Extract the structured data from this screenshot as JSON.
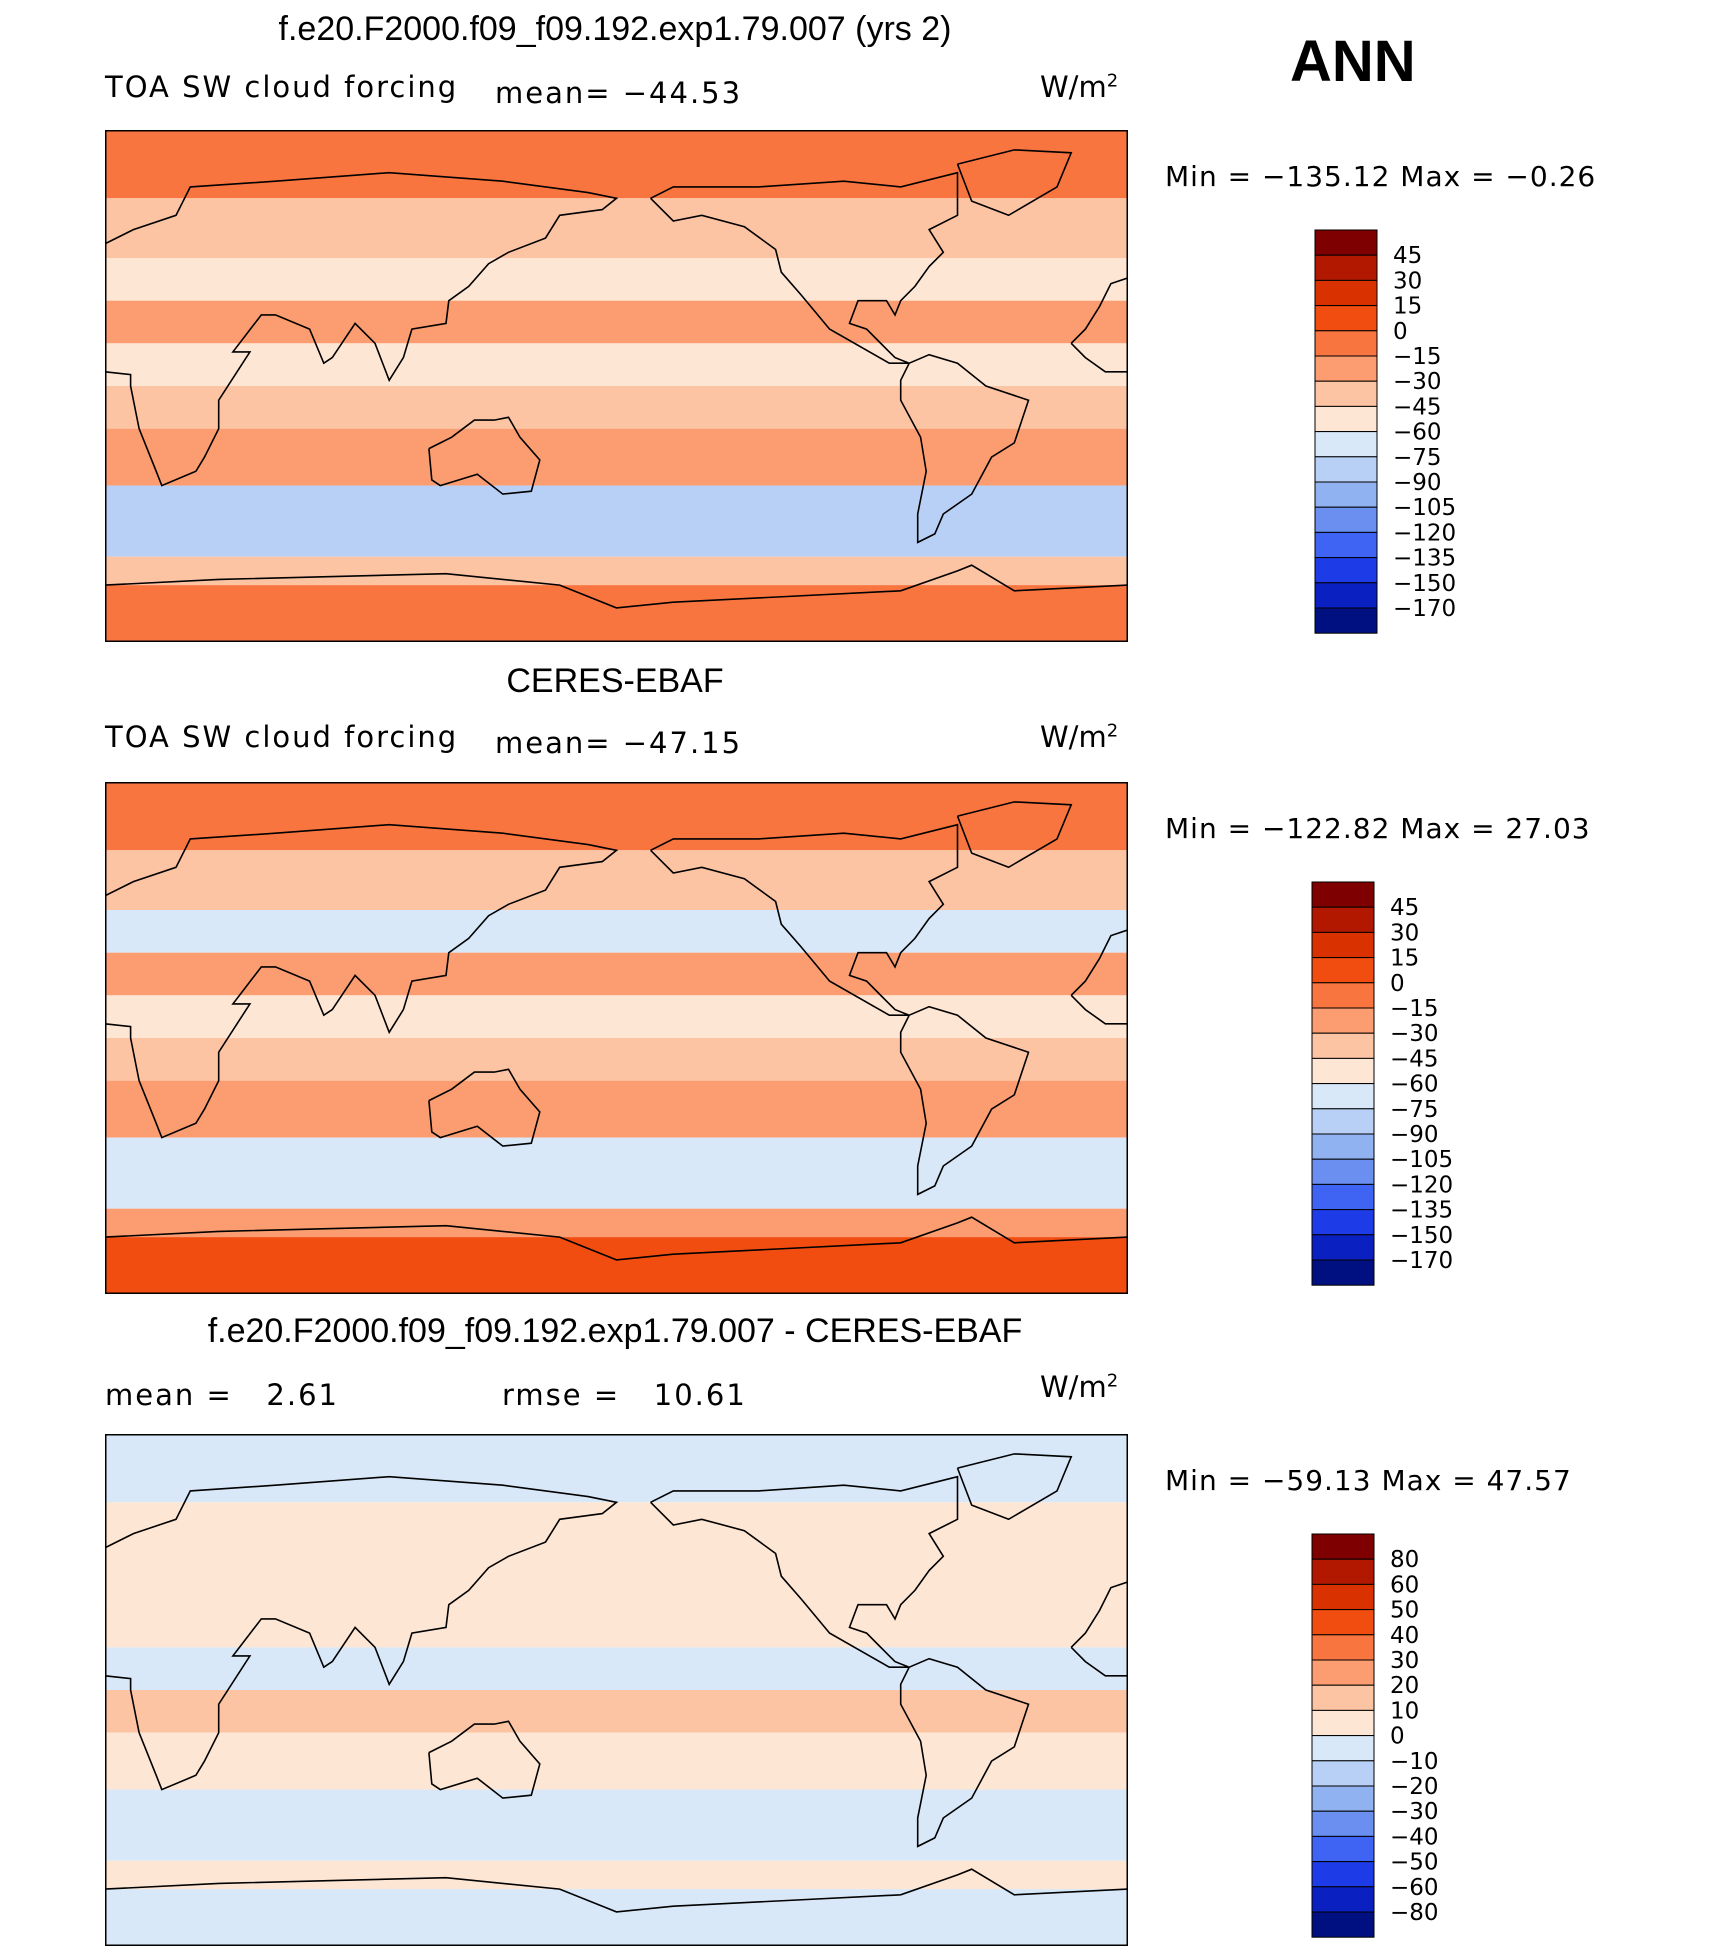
{
  "season": "ANN",
  "chart_data": [
    {
      "type": "heatmap",
      "title": "f.e20.F2000.f09_f09.192.exp1.79.007 (yrs 2)",
      "variable": "TOA SW cloud forcing",
      "mean_label": "mean= −44.53",
      "units": "W/m",
      "units_exp": "2",
      "min_max": "Min = −135.12 Max = −0.26",
      "min": -135.12,
      "max": -0.26,
      "mean": -44.53,
      "levels": [
        "45",
        "30",
        "15",
        "0",
        "−15",
        "−30",
        "−45",
        "−60",
        "−75",
        "−90",
        "−105",
        "−120",
        "−135",
        "−150",
        "−170"
      ],
      "colors": [
        "#7f0000",
        "#b21800",
        "#d93200",
        "#f24d10",
        "#f97540",
        "#fb9d70",
        "#fdc4a4",
        "#fee6d4",
        "#d8e8f8",
        "#b8d0f5",
        "#91b2f0",
        "#6a8ff0",
        "#3f63f2",
        "#1e3be8",
        "#0b20c0",
        "#001080"
      ],
      "bands": [
        {
          "lat": [
            90,
            66
          ],
          "value": -15
        },
        {
          "lat": [
            66,
            45
          ],
          "value": -45
        },
        {
          "lat": [
            45,
            30
          ],
          "value": -60
        },
        {
          "lat": [
            30,
            15
          ],
          "value": -30
        },
        {
          "lat": [
            15,
            0
          ],
          "value": -60
        },
        {
          "lat": [
            0,
            -15
          ],
          "value": -45
        },
        {
          "lat": [
            -15,
            -35
          ],
          "value": -30
        },
        {
          "lat": [
            -35,
            -60
          ],
          "value": -90
        },
        {
          "lat": [
            -60,
            -70
          ],
          "value": -45
        },
        {
          "lat": [
            -70,
            -90
          ],
          "value": -15
        }
      ]
    },
    {
      "type": "heatmap",
      "title": "CERES-EBAF",
      "variable": "TOA SW cloud forcing",
      "mean_label": "mean= −47.15",
      "units": "W/m",
      "units_exp": "2",
      "min_max": "Min = −122.82 Max = 27.03",
      "min": -122.82,
      "max": 27.03,
      "mean": -47.15,
      "levels": [
        "45",
        "30",
        "15",
        "0",
        "−15",
        "−30",
        "−45",
        "−60",
        "−75",
        "−90",
        "−105",
        "−120",
        "−135",
        "−150",
        "−170"
      ],
      "colors": [
        "#7f0000",
        "#b21800",
        "#d93200",
        "#f24d10",
        "#f97540",
        "#fb9d70",
        "#fdc4a4",
        "#fee6d4",
        "#d8e8f8",
        "#b8d0f5",
        "#91b2f0",
        "#6a8ff0",
        "#3f63f2",
        "#1e3be8",
        "#0b20c0",
        "#001080"
      ],
      "bands": [
        {
          "lat": [
            90,
            66
          ],
          "value": -15
        },
        {
          "lat": [
            66,
            45
          ],
          "value": -45
        },
        {
          "lat": [
            45,
            30
          ],
          "value": -75
        },
        {
          "lat": [
            30,
            15
          ],
          "value": -30
        },
        {
          "lat": [
            15,
            0
          ],
          "value": -60
        },
        {
          "lat": [
            0,
            -15
          ],
          "value": -45
        },
        {
          "lat": [
            -15,
            -35
          ],
          "value": -30
        },
        {
          "lat": [
            -35,
            -60
          ],
          "value": -75
        },
        {
          "lat": [
            -60,
            -70
          ],
          "value": -30
        },
        {
          "lat": [
            -70,
            -90
          ],
          "value": 0
        }
      ]
    },
    {
      "type": "heatmap",
      "title": "f.e20.F2000.f09_f09.192.exp1.79.007 - CERES-EBAF",
      "variable": "mean =   2.61",
      "mean_label": "rmse =   10.61",
      "units": "W/m",
      "units_exp": "2",
      "min_max": "Min = −59.13 Max = 47.57",
      "min": -59.13,
      "max": 47.57,
      "mean": 2.61,
      "rmse": 10.61,
      "levels": [
        "80",
        "60",
        "50",
        "40",
        "30",
        "20",
        "10",
        "0",
        "−10",
        "−20",
        "−30",
        "−40",
        "−50",
        "−60",
        "−80"
      ],
      "colors": [
        "#7f0000",
        "#b21800",
        "#d93200",
        "#f24d10",
        "#f97540",
        "#fb9d70",
        "#fdc4a4",
        "#fee6d4",
        "#d8e8f8",
        "#b8d0f5",
        "#91b2f0",
        "#6a8ff0",
        "#3f63f2",
        "#1e3be8",
        "#0b20c0",
        "#001080"
      ],
      "bands": [
        {
          "lat": [
            90,
            66
          ],
          "value": -5
        },
        {
          "lat": [
            66,
            45
          ],
          "value": 5
        },
        {
          "lat": [
            45,
            30
          ],
          "value": 5
        },
        {
          "lat": [
            30,
            15
          ],
          "value": 5
        },
        {
          "lat": [
            15,
            0
          ],
          "value": -5
        },
        {
          "lat": [
            0,
            -15
          ],
          "value": 15
        },
        {
          "lat": [
            -15,
            -35
          ],
          "value": 5
        },
        {
          "lat": [
            -35,
            -60
          ],
          "value": -5
        },
        {
          "lat": [
            -60,
            -70
          ],
          "value": 5
        },
        {
          "lat": [
            -70,
            -90
          ],
          "value": -5
        }
      ]
    }
  ]
}
